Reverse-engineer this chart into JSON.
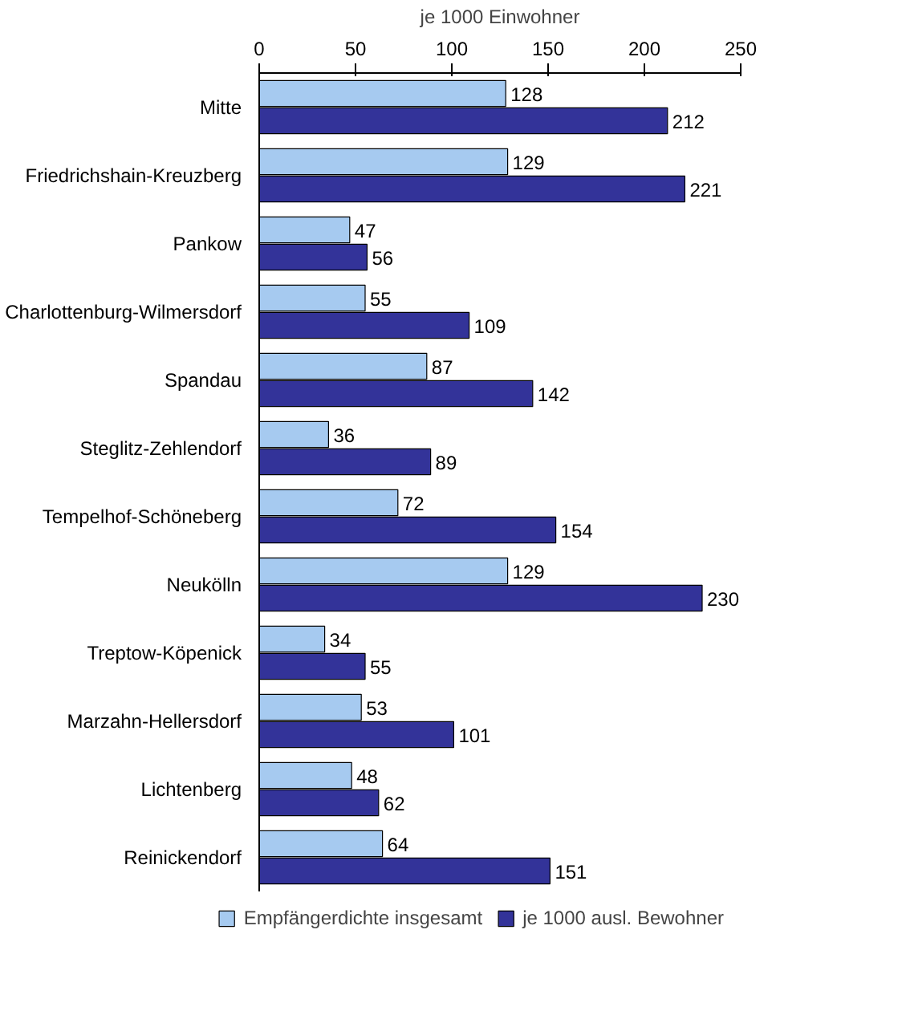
{
  "chart_data": {
    "type": "bar",
    "orientation": "horizontal",
    "xlabel": "je 1000 Einwohner",
    "categories": [
      "Mitte",
      "Friedrichshain-Kreuzberg",
      "Pankow",
      "Charlottenburg-Wilmersdorf",
      "Spandau",
      "Steglitz-Zehlendorf",
      "Tempelhof-Schöneberg",
      "Neukölln",
      "Treptow-Köpenick",
      "Marzahn-Hellersdorf",
      "Lichtenberg",
      "Reinickendorf"
    ],
    "series": [
      {
        "name": "Empfängerdichte insgesamt",
        "color": "#a6caf0",
        "values": [
          128,
          129,
          47,
          55,
          87,
          36,
          72,
          129,
          34,
          53,
          48,
          64
        ]
      },
      {
        "name": "je 1000 ausl. Bewohner",
        "color": "#333399",
        "values": [
          212,
          221,
          56,
          109,
          142,
          89,
          154,
          230,
          55,
          101,
          62,
          151
        ]
      }
    ],
    "xlim": [
      0,
      250
    ],
    "xticks": [
      0,
      50,
      100,
      150,
      200,
      250
    ],
    "data_labels": true,
    "grid": false,
    "legend": "bottom"
  }
}
